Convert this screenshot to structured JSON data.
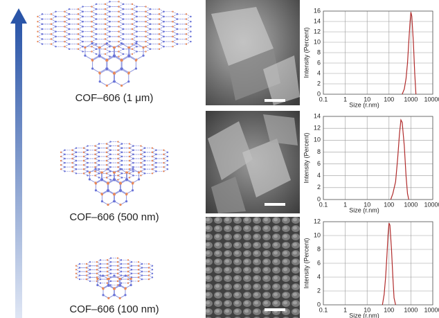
{
  "structure_labels": [
    "COF–606 (1 μm)",
    "COF–606 (500 nm)",
    "COF–606 (100 nm)"
  ],
  "chart_data": [
    {
      "type": "line",
      "x_label": "Size (r.nm)",
      "y_label": "Intensity (Percent)",
      "log_x": true,
      "grid": true,
      "color": "#b02a2a",
      "xlim": [
        0.1,
        10000
      ],
      "xticks": [
        0.1,
        1,
        10,
        100,
        1000,
        10000
      ],
      "ylim": [
        0,
        16
      ],
      "yticks": [
        0,
        2,
        4,
        6,
        8,
        10,
        12,
        14,
        16
      ],
      "x": [
        400,
        500,
        600,
        700,
        800,
        900,
        1000,
        1100,
        1300,
        1500,
        1700
      ],
      "values": [
        0,
        1,
        3,
        6,
        10,
        13.5,
        15.8,
        15,
        10,
        4,
        0
      ]
    },
    {
      "type": "line",
      "x_label": "Size (r.nm)",
      "y_label": "Intensity (Percent)",
      "log_x": true,
      "grid": true,
      "color": "#b02a2a",
      "xlim": [
        0.1,
        10000
      ],
      "xticks": [
        0.1,
        1,
        10,
        100,
        1000,
        10000
      ],
      "ylim": [
        0,
        14
      ],
      "yticks": [
        0,
        2,
        4,
        6,
        8,
        10,
        12,
        14
      ],
      "x": [
        120,
        150,
        200,
        250,
        300,
        350,
        400,
        500,
        600,
        700,
        800
      ],
      "values": [
        0,
        1,
        3,
        7,
        11,
        13.4,
        13,
        9,
        4,
        1,
        0
      ]
    },
    {
      "type": "line",
      "x_label": "Size (r.nm)",
      "y_label": "Intensity (Percent)",
      "log_x": true,
      "grid": true,
      "color": "#b02a2a",
      "xlim": [
        0.1,
        10000
      ],
      "xticks": [
        0.1,
        1,
        10,
        100,
        1000,
        10000
      ],
      "ylim": [
        0,
        12
      ],
      "yticks": [
        0,
        2,
        4,
        6,
        8,
        10,
        12
      ],
      "x": [
        50,
        60,
        70,
        80,
        90,
        100,
        110,
        130,
        150,
        170,
        200
      ],
      "values": [
        0,
        1.5,
        4,
        7,
        10,
        11.8,
        11.5,
        8,
        4,
        1,
        0
      ]
    }
  ]
}
